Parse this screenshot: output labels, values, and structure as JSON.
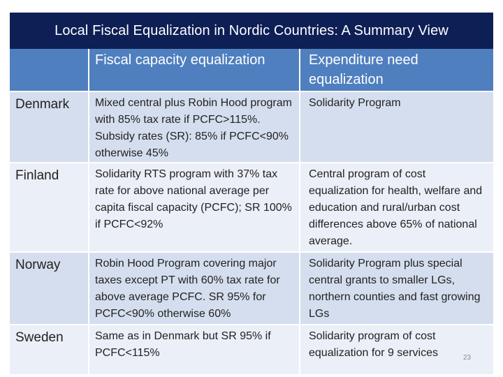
{
  "title": "Local Fiscal Equalization in Nordic Countries: A Summary View",
  "columns": [
    "",
    "Fiscal capacity equalization",
    "Expenditure need equalization"
  ],
  "rows": [
    {
      "country": "Denmark",
      "fiscal": "Mixed central plus Robin Hood program with 85% tax rate if PCFC>115%. Subsidy rates (SR): 85% if PCFC<90% otherwise 45%",
      "expenditure": "Solidarity Program"
    },
    {
      "country": "Finland",
      "fiscal": "Solidarity RTS program with 37% tax rate for above national average per capita fiscal capacity (PCFC); SR 100% if PCFC<92%",
      "expenditure": "Central program of cost equalization for health, welfare and education and rural/urban cost differences above 65% of national average."
    },
    {
      "country": "Norway",
      "fiscal": "Robin Hood Program covering major taxes except PT with 60% tax rate for above average PCFC. SR 95% for PCFC<90% otherwise 60%",
      "expenditure": "Solidarity Program plus special central grants to smaller LGs, northern counties and fast growing LGs"
    },
    {
      "country": "Sweden",
      "fiscal": "Same as in Denmark but SR 95% if PCFC<115%",
      "expenditure": "Solidarity program of cost equalization for 9 services"
    }
  ],
  "page_number": "23"
}
